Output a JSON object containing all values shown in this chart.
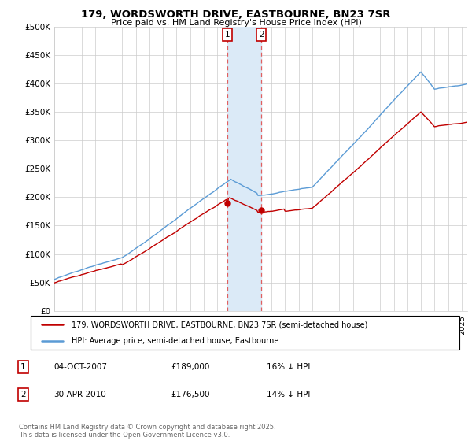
{
  "title_line1": "179, WORDSWORTH DRIVE, EASTBOURNE, BN23 7SR",
  "title_line2": "Price paid vs. HM Land Registry's House Price Index (HPI)",
  "ylim": [
    0,
    500000
  ],
  "yticks": [
    0,
    50000,
    100000,
    150000,
    200000,
    250000,
    300000,
    350000,
    400000,
    450000,
    500000
  ],
  "ytick_labels": [
    "£0",
    "£50K",
    "£100K",
    "£150K",
    "£200K",
    "£250K",
    "£300K",
    "£350K",
    "£400K",
    "£450K",
    "£500K"
  ],
  "hpi_color": "#5b9bd5",
  "price_color": "#c00000",
  "shade_color": "#dbeaf7",
  "dashed_color": "#e06060",
  "sale1_year": 2007,
  "sale1_month": 10,
  "sale1_price": 189000,
  "sale2_year": 2010,
  "sale2_month": 4,
  "sale2_price": 176500,
  "legend_line1": "179, WORDSWORTH DRIVE, EASTBOURNE, BN23 7SR (semi-detached house)",
  "legend_line2": "HPI: Average price, semi-detached house, Eastbourne",
  "footnote": "Contains HM Land Registry data © Crown copyright and database right 2025.\nThis data is licensed under the Open Government Licence v3.0.",
  "bg_color": "#ffffff",
  "grid_color": "#cccccc"
}
